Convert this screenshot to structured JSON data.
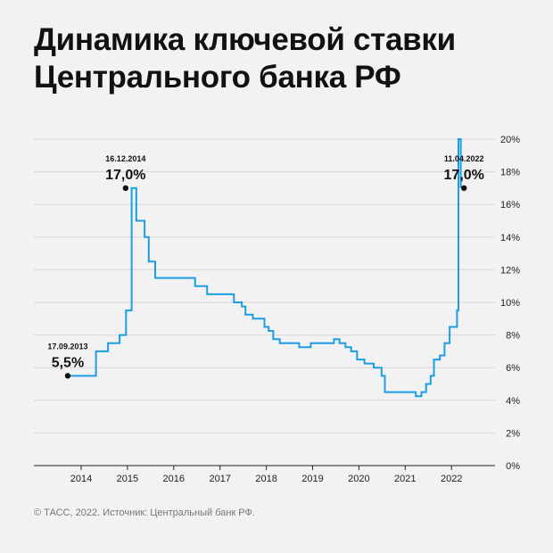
{
  "title_line1": "Динамика ключевой ставки",
  "title_line2": "Центрального банка РФ",
  "footer": "© ТАСС, 2022. Источник: Центральный банк РФ.",
  "chart_data": {
    "type": "line",
    "step": true,
    "grid": true,
    "ylim": [
      0,
      20
    ],
    "yticks": [
      0,
      2,
      4,
      6,
      8,
      10,
      12,
      14,
      16,
      18,
      20
    ],
    "ytick_labels": [
      "0%",
      "2%",
      "4%",
      "6%",
      "8%",
      "10%",
      "12%",
      "14%",
      "16%",
      "18%",
      "20%"
    ],
    "xlim": [
      2013.0,
      2023.0
    ],
    "xticks": [
      2014,
      2015,
      2016,
      2017,
      2018,
      2019,
      2020,
      2021,
      2022
    ],
    "xtick_labels": [
      "2014",
      "2015",
      "2016",
      "2017",
      "2018",
      "2019",
      "2020",
      "2021",
      "2022"
    ],
    "series": [
      {
        "color": "#1c9ee6",
        "x": [
          2013.71,
          2014.17,
          2014.32,
          2014.58,
          2014.83,
          2014.97,
          2015.09,
          2015.19,
          2015.37,
          2015.46,
          2015.6,
          2016.46,
          2016.72,
          2017.3,
          2017.47,
          2017.55,
          2017.71,
          2017.96,
          2018.05,
          2018.15,
          2018.29,
          2018.71,
          2018.96,
          2019.46,
          2019.58,
          2019.71,
          2019.83,
          2019.96,
          2020.12,
          2020.32,
          2020.49,
          2020.56,
          2021.23,
          2021.35,
          2021.45,
          2021.55,
          2021.62,
          2021.75,
          2021.85,
          2021.96,
          2022.12,
          2022.15,
          2022.2
        ],
        "y": [
          5.5,
          5.5,
          7.0,
          7.5,
          8.0,
          9.5,
          17.0,
          15.0,
          14.0,
          12.5,
          11.5,
          11.0,
          10.5,
          10.0,
          9.75,
          9.25,
          9.0,
          8.5,
          8.25,
          7.75,
          7.5,
          7.25,
          7.5,
          7.75,
          7.5,
          7.25,
          7.0,
          6.5,
          6.25,
          6.0,
          5.5,
          4.5,
          4.25,
          4.5,
          5.0,
          5.5,
          6.5,
          6.75,
          7.5,
          8.5,
          9.5,
          20.0,
          17.0
        ]
      }
    ],
    "annotations": [
      {
        "date": "17.09.2013",
        "value": "5,5%",
        "x": 2013.71,
        "y": 5.5
      },
      {
        "date": "16.12.2014",
        "value": "17,0%",
        "x": 2014.96,
        "y": 17.0
      },
      {
        "date": "11.04.2022",
        "value": "17,0%",
        "x": 2022.27,
        "y": 17.0
      }
    ]
  }
}
